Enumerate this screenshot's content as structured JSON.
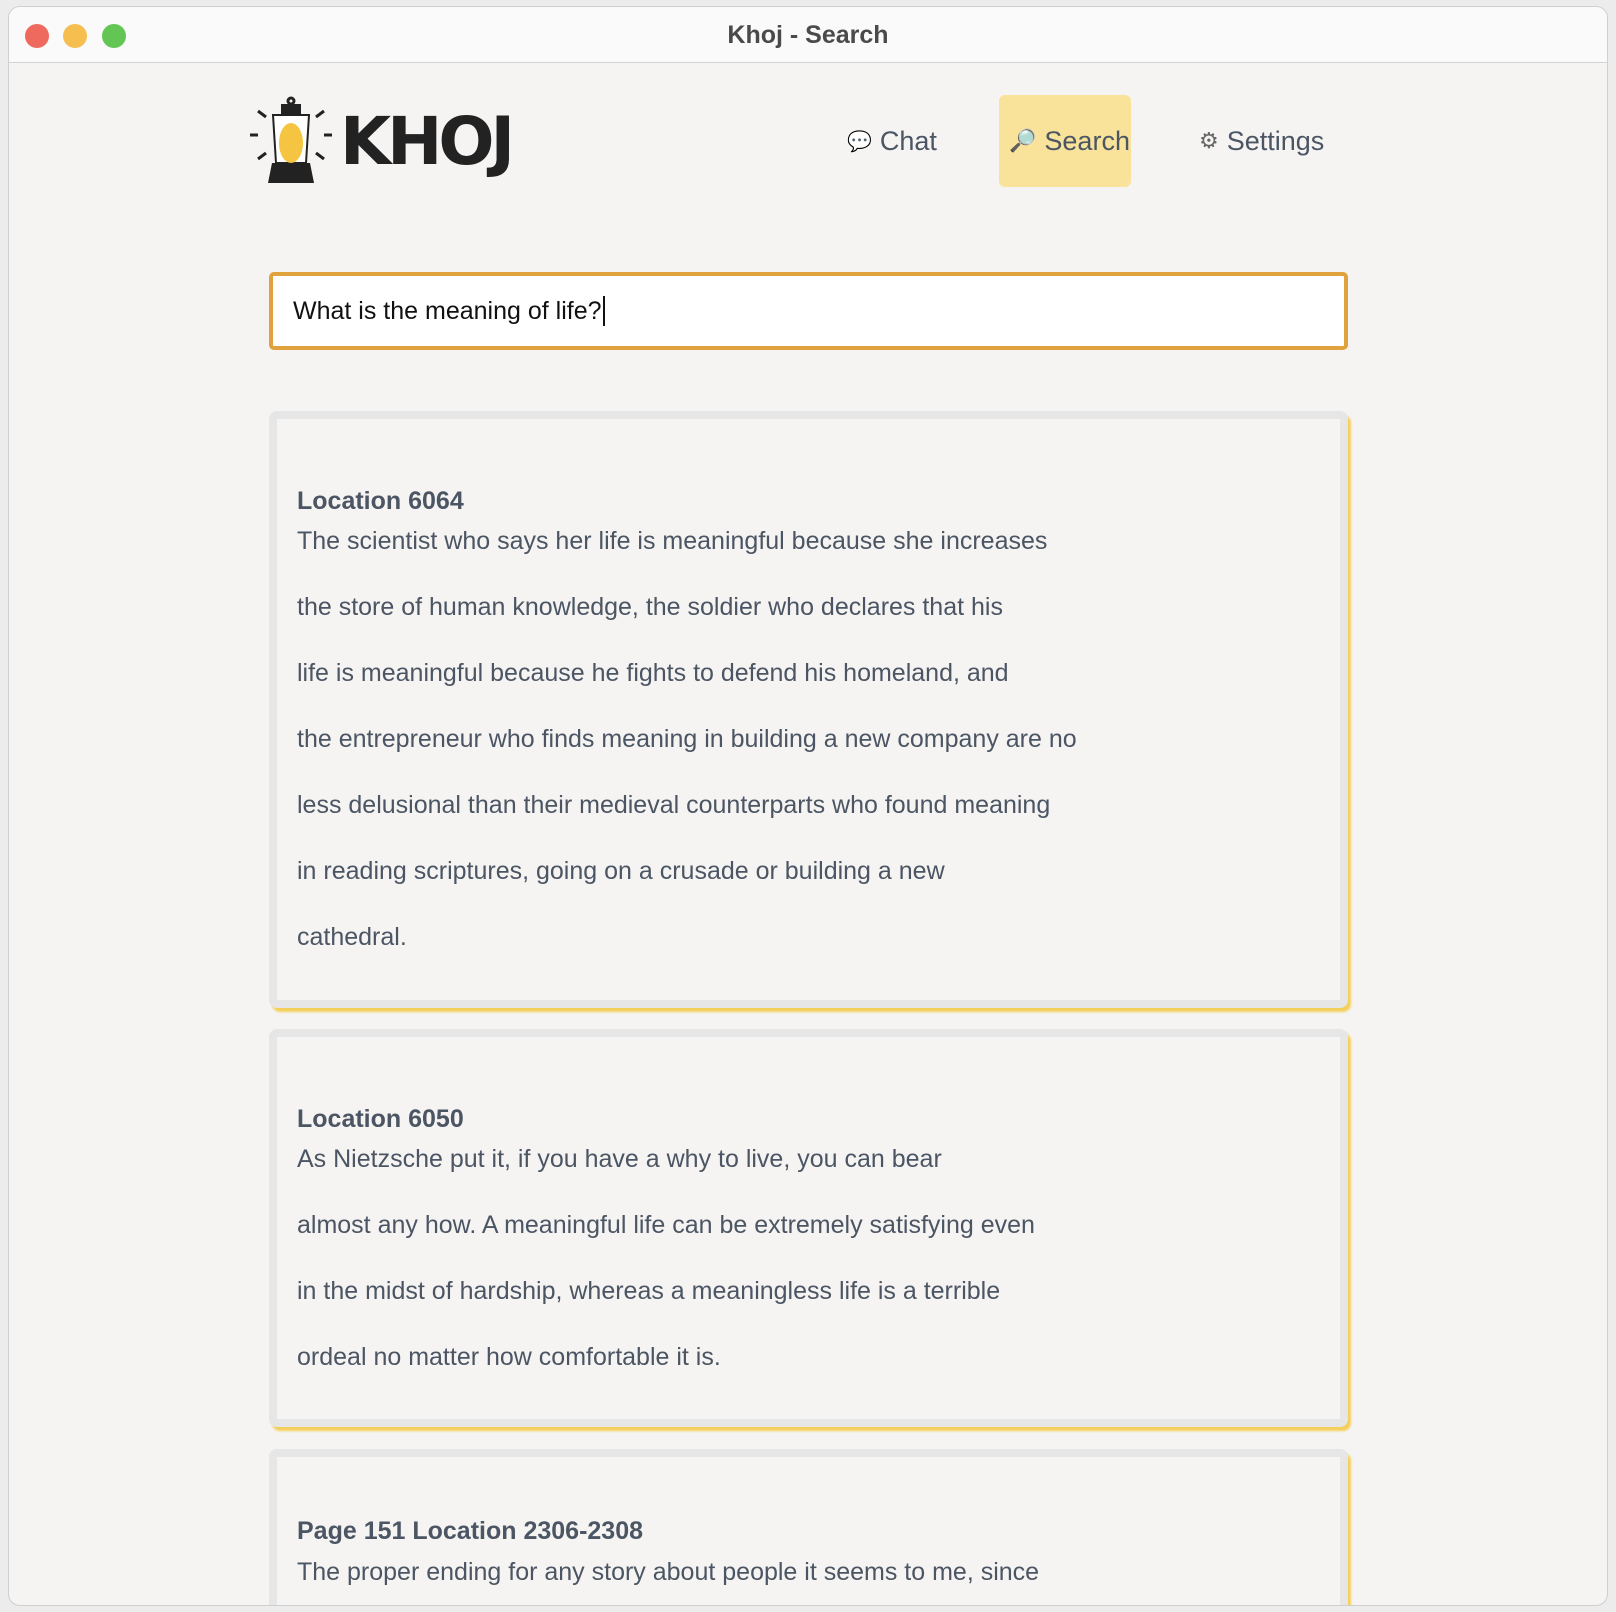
{
  "window": {
    "title": "Khoj - Search",
    "controls": {
      "close": "#ee6a5f",
      "minimize": "#f5be4f",
      "maximize": "#62c554"
    }
  },
  "logo": {
    "text": "KHOJ"
  },
  "nav": [
    {
      "label": "Chat",
      "icon": "speech-bubble-icon"
    },
    {
      "label": "Search",
      "icon": "magnifier-icon",
      "active": true
    },
    {
      "label": "Settings",
      "icon": "gear-icon"
    }
  ],
  "search": {
    "value": "What is the meaning of life?"
  },
  "colors": {
    "accent": "#e0a23c",
    "active_nav": "#f9e39a",
    "card_shadow": "#f4cf5a"
  },
  "results": [
    {
      "heading": "Location 6064",
      "lines": [
        "The scientist who says her life is meaningful because she increases",
        "the store of human knowledge, the soldier who declares that his",
        "life is meaningful because he fights to defend his homeland, and",
        "the entrepreneur who finds meaning in building a new company are no",
        "less delusional than their medieval counterparts who found meaning",
        "in reading scriptures, going on a crusade or building a new",
        "cathedral."
      ]
    },
    {
      "heading": "Location 6050",
      "lines": [
        "As Nietzsche put it, if you have a why to live, you can bear",
        "almost any how. A meaningful life can be extremely satisfying even",
        "in the midst of hardship, whereas a meaningless life is a terrible",
        "ordeal no matter how comfortable it is."
      ]
    },
    {
      "heading": "Page 151 Location 2306-2308",
      "lines": [
        "The proper ending for any story about people it seems to me, since"
      ]
    }
  ]
}
